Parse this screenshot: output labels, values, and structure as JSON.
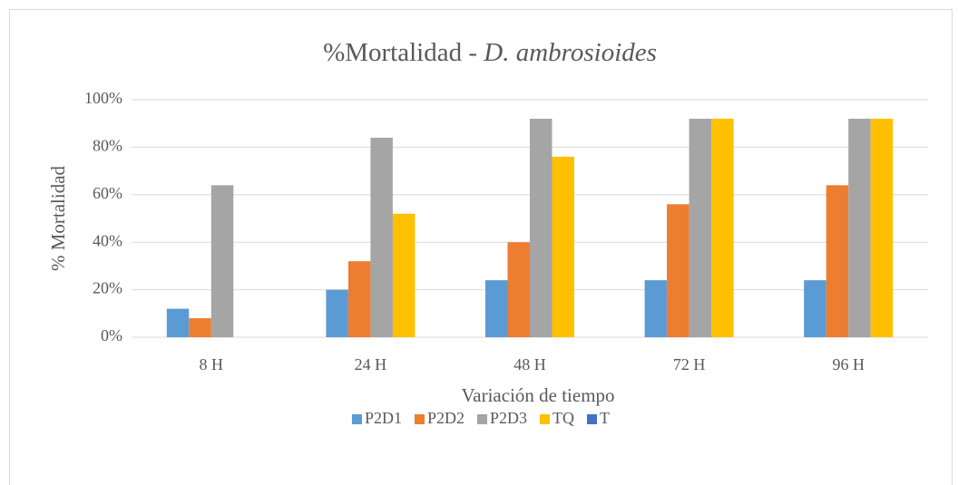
{
  "chart_data": {
    "type": "bar",
    "title": [
      "%Mortalidad - ",
      "D. ambrosioides"
    ],
    "xlabel": "Variación de tiempo",
    "ylabel": "% Mortalidad",
    "categories": [
      "8 H",
      "24 H",
      "48 H",
      "72 H",
      "96 H"
    ],
    "series": [
      {
        "name": "P2D1",
        "color": "#5b9bd5",
        "values": [
          12,
          20,
          24,
          24,
          24
        ]
      },
      {
        "name": "P2D2",
        "color": "#ed7d31",
        "values": [
          8,
          32,
          40,
          56,
          64
        ]
      },
      {
        "name": "P2D3",
        "color": "#a5a5a5",
        "values": [
          64,
          84,
          92,
          92,
          92
        ]
      },
      {
        "name": "TQ",
        "color": "#ffc000",
        "values": [
          0,
          52,
          76,
          92,
          92
        ]
      },
      {
        "name": "T",
        "color": "#4472c4",
        "values": [
          0,
          0,
          0,
          0,
          0
        ]
      }
    ],
    "ylim": [
      0,
      100
    ],
    "yticks": [
      {
        "value": 0,
        "label": "0%"
      },
      {
        "value": 20,
        "label": "20%"
      },
      {
        "value": 40,
        "label": "40%"
      },
      {
        "value": 60,
        "label": "60%"
      },
      {
        "value": 80,
        "label": "80%"
      },
      {
        "value": 100,
        "label": "100%"
      }
    ],
    "grid": true,
    "legend": "bottom"
  }
}
